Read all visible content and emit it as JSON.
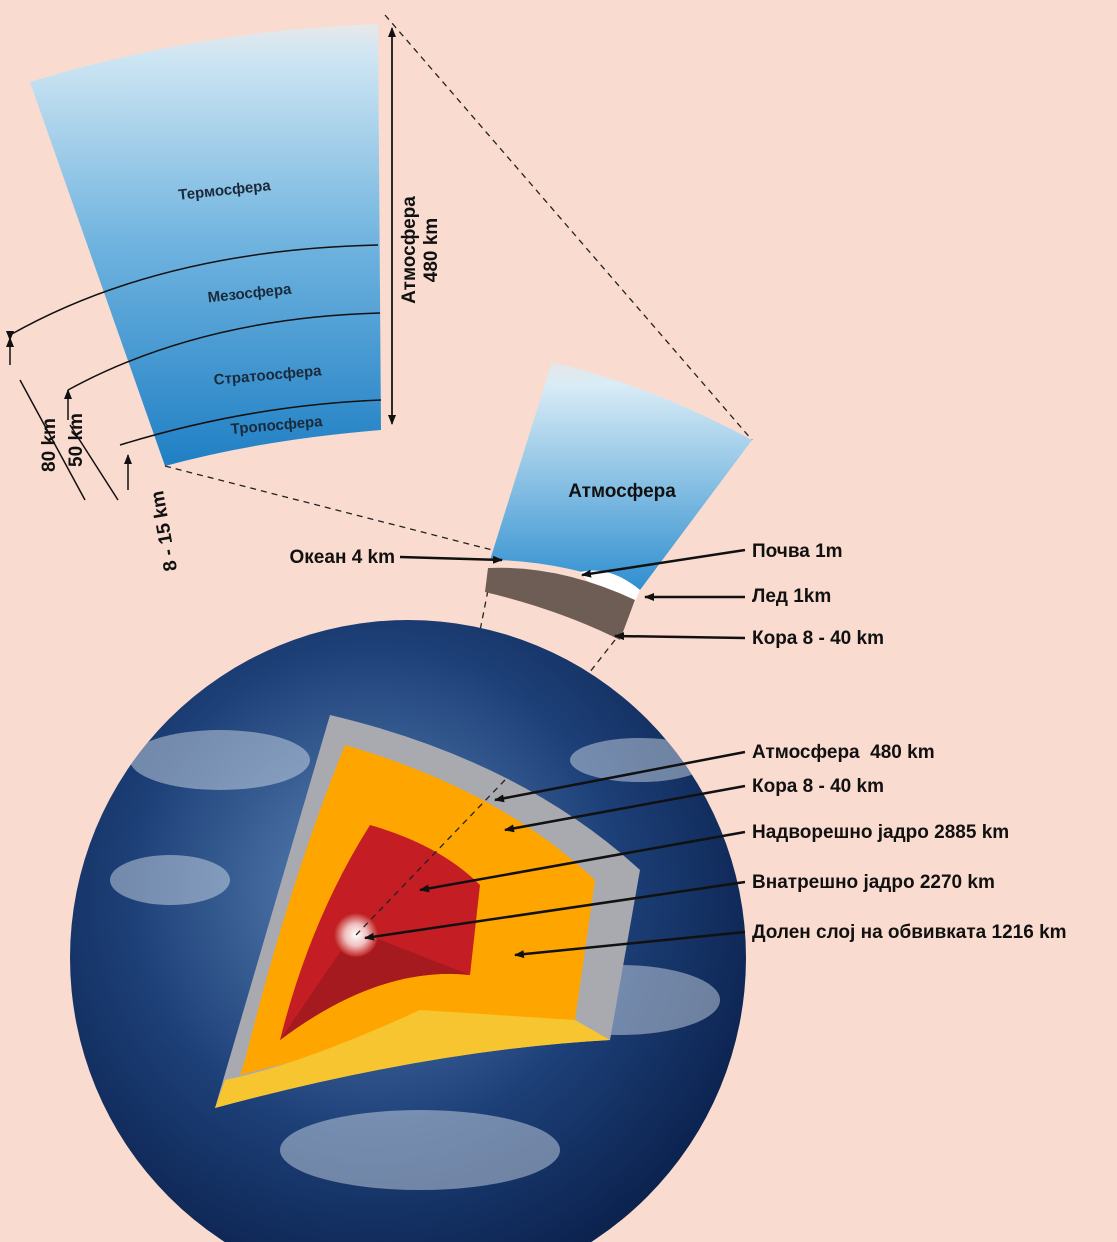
{
  "atmosphere_section": {
    "layers": [
      "Термосфера",
      "Мезосфера",
      "Стратоосфера",
      "Тропосфера"
    ],
    "total_label": "Атмосфера",
    "total_height": "480 km",
    "heights": [
      "80 km",
      "50 km",
      "8 - 15 km"
    ]
  },
  "surface_section": {
    "title": "Атмосфера",
    "labels": [
      "Океан 4 km",
      "Почва 1m",
      "Лед 1km",
      "Кора 8 - 40 km"
    ]
  },
  "earth_section": {
    "labels": [
      "Атмосфера  480 km",
      "Кора 8 - 40 km",
      "Надворешно јадро 2885 km",
      "Внатрешно јадро 2270 km",
      "Долен слој на обвивката 1216 km"
    ]
  }
}
